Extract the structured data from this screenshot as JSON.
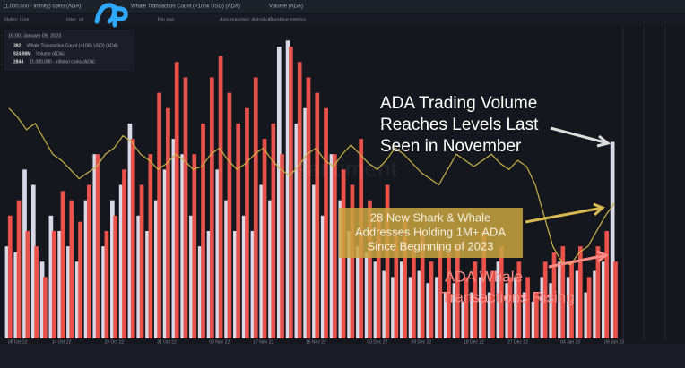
{
  "chart_data": {
    "type": "bar_line",
    "tabs_note": null,
    "toolbar": [
      "Styles: Line",
      "Inter. all",
      "Pin exp",
      "Axis max/min: Auto/Auto",
      "Combine metrics"
    ],
    "watermark": "santiment",
    "tooltip": {
      "time": "16:00, January 09, 2023",
      "values": [
        "382",
        "924.98M",
        "2844"
      ]
    },
    "categories": [
      null,
      "08 Oct 22",
      null,
      null,
      null,
      null,
      "14 Oct 22",
      null,
      null,
      null,
      null,
      null,
      "23 Oct 22",
      null,
      null,
      null,
      null,
      null,
      "31 Oct 22",
      null,
      null,
      null,
      null,
      null,
      "08 Nov 22",
      null,
      null,
      null,
      null,
      "17 Nov 22",
      null,
      null,
      null,
      null,
      null,
      "26 Nov 22",
      null,
      null,
      null,
      null,
      null,
      null,
      "03 Dec 22",
      null,
      null,
      null,
      null,
      "09 Dec 22",
      null,
      null,
      null,
      null,
      null,
      "18 Dec 22",
      null,
      null,
      null,
      null,
      "27 Dec 22",
      null,
      null,
      null,
      null,
      null,
      "04 Jan 23",
      null,
      null,
      null,
      null,
      "09 Jan 23"
    ],
    "ylim": [
      0,
      100
    ],
    "y2lim": [
      0,
      100
    ],
    "series": [
      {
        "name": "Whale Transaction Count (>100k USD) (ADA)",
        "kind": "bar",
        "color": "#d8d8e6",
        "values": [
          30,
          28,
          55,
          50,
          25,
          40,
          35,
          30,
          25,
          45,
          60,
          30,
          45,
          50,
          70,
          40,
          35,
          45,
          55,
          65,
          60,
          40,
          30,
          35,
          55,
          45,
          35,
          40,
          35,
          50,
          45,
          95,
          97,
          70,
          75,
          50,
          40,
          60,
          45,
          35,
          30,
          28,
          25,
          22,
          20,
          25,
          20,
          22,
          18,
          20,
          15,
          18,
          12,
          15,
          20,
          15,
          25,
          18,
          20,
          15,
          12,
          20,
          18,
          25,
          20,
          22,
          15,
          22,
          25,
          64
        ]
      },
      {
        "name": "Volume (ADA)",
        "kind": "bar",
        "color": "#e8524a",
        "values": [
          40,
          45,
          35,
          30,
          20,
          35,
          48,
          45,
          38,
          50,
          60,
          35,
          40,
          55,
          65,
          50,
          60,
          80,
          75,
          90,
          85,
          60,
          70,
          85,
          92,
          80,
          70,
          75,
          85,
          65,
          70,
          60,
          95,
          90,
          85,
          80,
          75,
          60,
          55,
          50,
          65,
          45,
          40,
          50,
          35,
          40,
          30,
          35,
          25,
          30,
          28,
          30,
          20,
          25,
          35,
          22,
          30,
          20,
          25,
          20,
          15,
          25,
          28,
          30,
          25,
          30,
          20,
          30,
          35,
          25
        ]
      },
      {
        "name": "[1,000,000 - infinity) coins (ADA)",
        "kind": "line",
        "axis": "y2",
        "color": "#c9b245",
        "values": [
          75,
          72,
          68,
          70,
          65,
          60,
          58,
          55,
          52,
          54,
          56,
          60,
          62,
          66,
          64,
          60,
          58,
          55,
          57,
          60,
          58,
          55,
          56,
          60,
          62,
          58,
          55,
          57,
          60,
          62,
          58,
          55,
          53,
          56,
          60,
          62,
          58,
          56,
          60,
          63,
          60,
          57,
          55,
          58,
          62,
          60,
          57,
          54,
          52,
          50,
          55,
          60,
          58,
          56,
          58,
          60,
          57,
          55,
          58,
          56,
          50,
          40,
          30,
          25,
          24,
          28,
          30,
          35,
          40,
          44
        ]
      }
    ],
    "annotations": [
      {
        "lines": [
          "ADA Trading Volume",
          "Reaches Levels Last",
          "Seen in November"
        ]
      },
      {
        "lines": [
          "28 New Shark & Whale",
          "Addresses Holding 1M+ ADA",
          "Since Beginning of 2023"
        ]
      },
      {
        "lines": [
          "ADA Whale",
          "Transactions Rising"
        ]
      }
    ]
  }
}
